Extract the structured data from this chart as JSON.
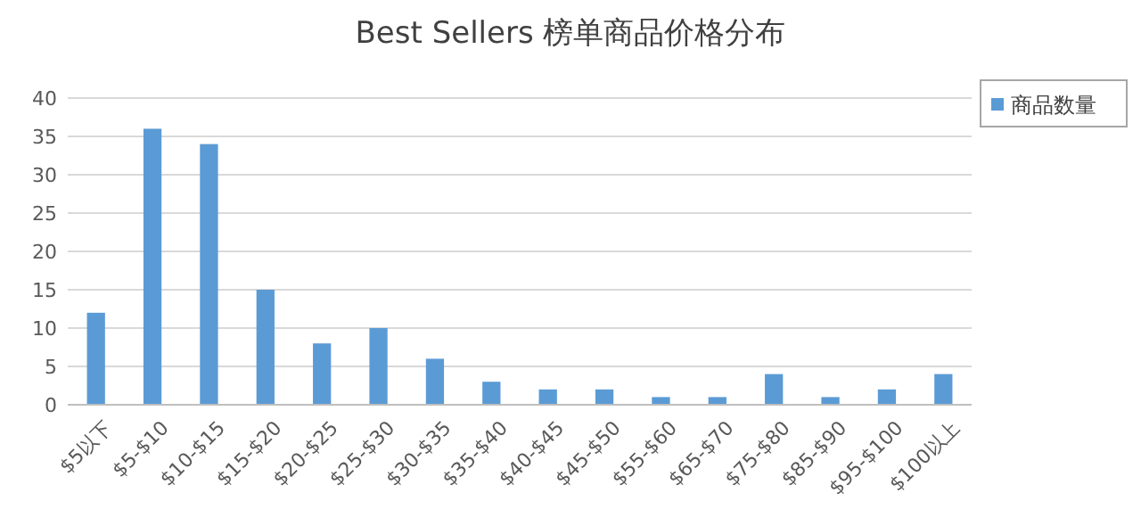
{
  "chart_data": {
    "type": "bar",
    "title": "Best Sellers 榜单商品价格分布",
    "categories": [
      "$5以下",
      "$5-$10",
      "$10-$15",
      "$15-$20",
      "$20-$25",
      "$25-$30",
      "$30-$35",
      "$35-$40",
      "$40-$45",
      "$45-$50",
      "$55-$60",
      "$65-$70",
      "$75-$80",
      "$85-$90",
      "$95-$100",
      "$100以上"
    ],
    "series": [
      {
        "name": "商品数量",
        "color": "#5b9bd5",
        "values": [
          12,
          36,
          34,
          15,
          8,
          10,
          6,
          3,
          2,
          2,
          1,
          1,
          4,
          1,
          2,
          4
        ]
      }
    ],
    "ylim": [
      0,
      40
    ],
    "yticks": [
      0,
      5,
      10,
      15,
      20,
      25,
      30,
      35,
      40
    ],
    "grid": "y",
    "legend": "top right"
  }
}
